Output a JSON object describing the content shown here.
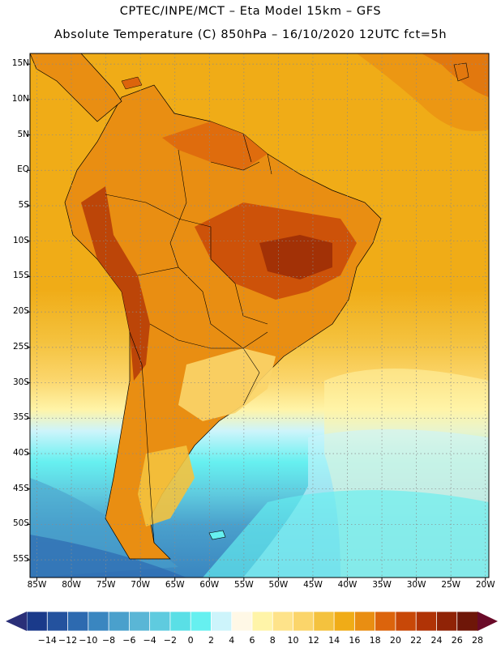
{
  "header": {
    "line1": "CPTEC/INPE/MCT –   Eta Model 15km – GFS",
    "line2": "Absolute Temperature (C) 850hPa – 16/10/2020 12UTC fct=5h"
  },
  "map": {
    "region": "South America",
    "lat_labels": [
      "15N",
      "10N",
      "5N",
      "EQ",
      "5S",
      "10S",
      "15S",
      "20S",
      "25S",
      "30S",
      "35S",
      "40S",
      "45S",
      "50S",
      "55S"
    ],
    "lon_labels": [
      "85W",
      "80W",
      "75W",
      "70W",
      "65W",
      "60W",
      "55W",
      "50W",
      "45W",
      "40W",
      "35W",
      "30W",
      "25W",
      "20W"
    ],
    "lat_range": [
      16.5,
      -57.5
    ],
    "lon_range": [
      -86,
      -19.5
    ],
    "gridlines": true
  },
  "colorbar": {
    "labels": [
      "-14",
      "-12",
      "-10",
      "-8",
      "-6",
      "-4",
      "-2",
      "0",
      "2",
      "4",
      "6",
      "8",
      "10",
      "12",
      "14",
      "16",
      "18",
      "20",
      "22",
      "24",
      "26",
      "28"
    ],
    "colors": [
      "#1a3a8a",
      "#24529e",
      "#2d6ab0",
      "#3a86c0",
      "#4aa0cc",
      "#5ab6d6",
      "#5fcbdf",
      "#5adfe6",
      "#66f0f0",
      "#cdf4fb",
      "#fff8e6",
      "#fff4a8",
      "#fee38a",
      "#fbd56a",
      "#f4c23e",
      "#f0ac17",
      "#e98e12",
      "#dc640c",
      "#c84808",
      "#b03306",
      "#902306",
      "#6e1608"
    ],
    "arrow_left_color": "#2a2f78",
    "arrow_right_color": "#6a0a28"
  }
}
